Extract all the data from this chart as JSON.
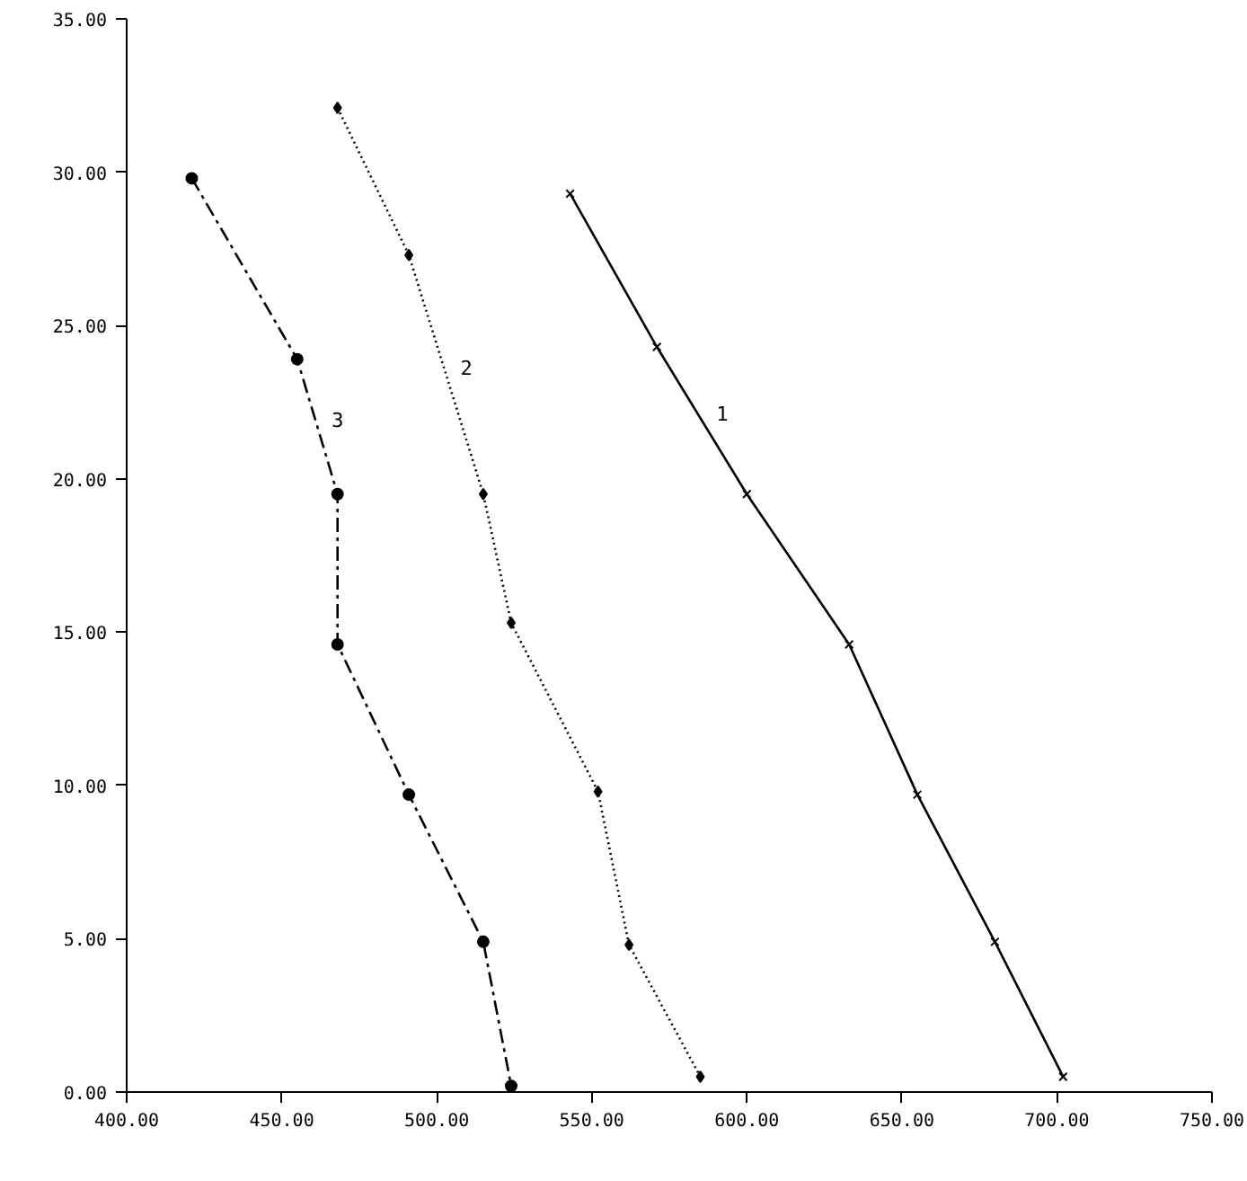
{
  "chart_data": {
    "type": "line",
    "xlim": [
      400,
      750
    ],
    "ylim": [
      0,
      35
    ],
    "xticks": [
      {
        "value": 400,
        "label": "400.00"
      },
      {
        "value": 450,
        "label": "450.00"
      },
      {
        "value": 500,
        "label": "500.00"
      },
      {
        "value": 550,
        "label": "550.00"
      },
      {
        "value": 600,
        "label": "600.00"
      },
      {
        "value": 650,
        "label": "650.00"
      },
      {
        "value": 700,
        "label": "700.00"
      },
      {
        "value": 750,
        "label": "750.00"
      }
    ],
    "yticks": [
      {
        "value": 0,
        "label": "0.00"
      },
      {
        "value": 5,
        "label": "5.00"
      },
      {
        "value": 10,
        "label": "10.00"
      },
      {
        "value": 15,
        "label": "15.00"
      },
      {
        "value": 20,
        "label": "20.00"
      },
      {
        "value": 25,
        "label": "25.00"
      },
      {
        "value": 30,
        "label": "30.00"
      },
      {
        "value": 35,
        "label": "35.00"
      }
    ],
    "grid": false,
    "series": [
      {
        "name": "1",
        "color": "#000000",
        "line_style": "solid",
        "marker": "cross",
        "x": [
          543,
          571,
          600,
          633,
          655,
          680,
          702
        ],
        "values": [
          29.3,
          24.3,
          19.5,
          14.6,
          9.7,
          4.9,
          0.5
        ]
      },
      {
        "name": "2",
        "color": "#000000",
        "line_style": "dotted",
        "marker": "diamond",
        "x": [
          468,
          491,
          515,
          524,
          552,
          562,
          585
        ],
        "values": [
          32.1,
          27.3,
          19.5,
          15.3,
          9.8,
          4.8,
          0.5
        ]
      },
      {
        "name": "3",
        "color": "#000000",
        "line_style": "dashed",
        "marker": "circle",
        "x": [
          421,
          455,
          468,
          468,
          491,
          515,
          524
        ],
        "values": [
          29.8,
          23.9,
          19.5,
          14.6,
          9.7,
          4.9,
          0.2
        ]
      }
    ]
  }
}
